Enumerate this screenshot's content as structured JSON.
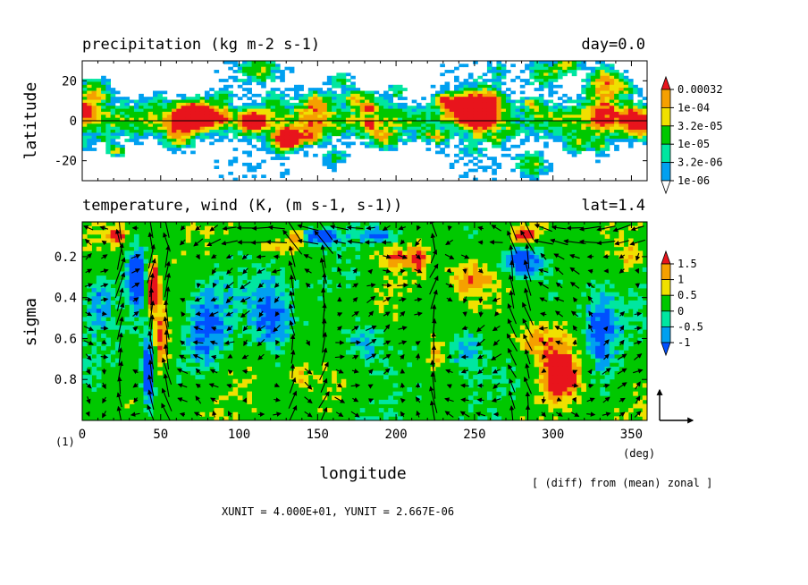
{
  "chart_data": [
    {
      "type": "heatmap",
      "title": "precipitation (kg m-2 s-1)",
      "title_right": "day=0.0",
      "ylabel": "latitude",
      "xlim": [
        0,
        360
      ],
      "ylim": [
        -30,
        30
      ],
      "yticks": [
        20,
        0,
        -20
      ],
      "colorbar": {
        "labels": [
          "0.00032",
          "1e-04",
          "3.2e-05",
          "1e-05",
          "3.2e-06",
          "1e-06"
        ],
        "colors": [
          "#e8141c",
          "#f5a000",
          "#f0e000",
          "#00c800",
          "#00e6a0",
          "#00a0f0",
          "#ffffff"
        ]
      }
    },
    {
      "type": "heatmap",
      "title": "temperature, wind (K, (m s-1, s-1))",
      "title_right": "lat=1.4",
      "xlabel": "longitude",
      "ylabel": "sigma",
      "xlim": [
        0,
        360
      ],
      "ylim": [
        1.0,
        0.03
      ],
      "xticks": [
        0,
        50,
        100,
        150,
        200,
        250,
        300,
        350
      ],
      "yticks": [
        0.2,
        0.4,
        0.6,
        0.8
      ],
      "xunit": "(deg)",
      "colorbar": {
        "labels": [
          "1.5",
          "1",
          "0.5",
          "0",
          "-0.5",
          "-1"
        ],
        "colors": [
          "#e8141c",
          "#f5a000",
          "#f0e000",
          "#00c800",
          "#00e6a0",
          "#00a0f0",
          "#0050ff"
        ]
      },
      "vector_unit": {
        "x": "4.000E+01",
        "y": "2.667E-06"
      }
    }
  ],
  "figure_label": "(1)",
  "note": "[ (diff) from (mean) zonal ]",
  "unit_line": "XUNIT = 4.000E+01, YUNIT = 2.667E-06"
}
